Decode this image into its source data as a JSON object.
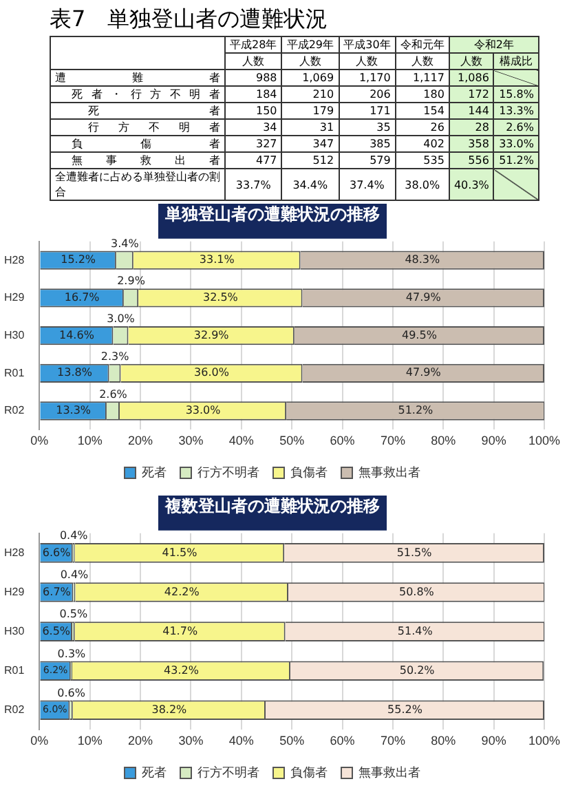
{
  "chart_data": [
    {
      "type": "other",
      "title": "表7　単独登山者の遭難状況",
      "categories": [
        "平成28年",
        "平成29年",
        "平成30年",
        "令和元年",
        "令和2年",
        null
      ],
      "y_categories": [
        null,
        "遭難者",
        "死者・行方不明者",
        "死者",
        "行方不明者",
        "負傷者",
        "無事救出者",
        "全遭難者に占める単独登山者の割合"
      ],
      "cell_labels": [
        [
          "人数",
          "人数",
          "人数",
          "人数",
          "人数",
          "構成比"
        ],
        [
          "988",
          "1,069",
          "1,170",
          "1,117",
          "1,086",
          null
        ],
        [
          "184",
          "210",
          "206",
          "180",
          "172",
          "15.8%"
        ],
        [
          "150",
          "179",
          "171",
          "154",
          "144",
          "13.3%"
        ],
        [
          "34",
          "31",
          "35",
          "26",
          "28",
          "2.6%"
        ],
        [
          "327",
          "347",
          "385",
          "402",
          "358",
          "33.0%"
        ],
        [
          "477",
          "512",
          "579",
          "535",
          "556",
          "51.2%"
        ],
        [
          "33.7%",
          "34.4%",
          "37.4%",
          "38.0%",
          "40.3%",
          null
        ]
      ]
    },
    {
      "type": "bar",
      "orientation": "horizontal",
      "stacked": true,
      "title": "単独登山者の遭難状況の推移",
      "categories": [
        "H28",
        "H29",
        "H30",
        "R01",
        "R02"
      ],
      "xlim": [
        0,
        100
      ],
      "xticks": [
        {
          "value": 0,
          "label": "0%"
        },
        {
          "value": 10,
          "label": "10%"
        },
        {
          "value": 20,
          "label": "20%"
        },
        {
          "value": 30,
          "label": "30%"
        },
        {
          "value": 40,
          "label": "40%"
        },
        {
          "value": 50,
          "label": "50%"
        },
        {
          "value": 60,
          "label": "60%"
        },
        {
          "value": 70,
          "label": "70%"
        },
        {
          "value": 80,
          "label": "80%"
        },
        {
          "value": 90,
          "label": "90%"
        },
        {
          "value": 100,
          "label": "100%"
        }
      ],
      "grid": "x",
      "legend": "bottom",
      "series": [
        {
          "name": "死者",
          "color": "#3a9bdc",
          "values": [
            15.2,
            16.7,
            14.6,
            13.8,
            13.3
          ],
          "value_labels": [
            "15.2%",
            "16.7%",
            "14.6%",
            "13.8%",
            "13.3%"
          ]
        },
        {
          "name": "行方不明者",
          "color": "#d6ebc2",
          "values": [
            3.4,
            2.9,
            3.0,
            2.3,
            2.6
          ],
          "value_labels": [
            "3.4%",
            "2.9%",
            "3.0%",
            "2.3%",
            "2.6%"
          ]
        },
        {
          "name": "負傷者",
          "color": "#f7f58c",
          "values": [
            33.1,
            32.5,
            32.9,
            36.0,
            33.0
          ],
          "value_labels": [
            "33.1%",
            "32.5%",
            "32.9%",
            "36.0%",
            "33.0%"
          ]
        },
        {
          "name": "無事救出者",
          "color": "#cbbdb0",
          "values": [
            48.3,
            47.9,
            49.5,
            47.9,
            51.2
          ],
          "value_labels": [
            "48.3%",
            "47.9%",
            "49.5%",
            "47.9%",
            "51.2%"
          ]
        }
      ]
    },
    {
      "type": "bar",
      "orientation": "horizontal",
      "stacked": true,
      "title": "複数登山者の遭難状況の推移",
      "categories": [
        "H28",
        "H29",
        "H30",
        "R01",
        "R02"
      ],
      "xlim": [
        0,
        100
      ],
      "xticks": [
        {
          "value": 0,
          "label": "0%"
        },
        {
          "value": 10,
          "label": "10%"
        },
        {
          "value": 20,
          "label": "20%"
        },
        {
          "value": 30,
          "label": "30%"
        },
        {
          "value": 40,
          "label": "40%"
        },
        {
          "value": 50,
          "label": "50%"
        },
        {
          "value": 60,
          "label": "60%"
        },
        {
          "value": 70,
          "label": "70%"
        },
        {
          "value": 80,
          "label": "80%"
        },
        {
          "value": 90,
          "label": "90%"
        },
        {
          "value": 100,
          "label": "100%"
        }
      ],
      "grid": "x",
      "legend": "bottom",
      "series": [
        {
          "name": "死者",
          "color": "#3a9bdc",
          "values": [
            6.6,
            6.7,
            6.5,
            6.2,
            6.0
          ],
          "value_labels": [
            "6.6%",
            "6.7%",
            "6.5%",
            "6.2%",
            "6.0%"
          ]
        },
        {
          "name": "行方不明者",
          "color": "#d6ebc2",
          "values": [
            0.4,
            0.4,
            0.5,
            0.3,
            0.6
          ],
          "value_labels": [
            "0.4%",
            "0.4%",
            "0.5%",
            "0.3%",
            "0.6%"
          ]
        },
        {
          "name": "負傷者",
          "color": "#f7f58c",
          "values": [
            41.5,
            42.2,
            41.7,
            43.2,
            38.2
          ],
          "value_labels": [
            "41.5%",
            "42.2%",
            "41.7%",
            "43.2%",
            "38.2%"
          ]
        },
        {
          "name": "無事救出者",
          "color": "#f6e4d8",
          "values": [
            51.5,
            50.8,
            51.4,
            50.2,
            55.2
          ],
          "value_labels": [
            "51.5%",
            "50.8%",
            "51.4%",
            "50.2%",
            "55.2%"
          ]
        }
      ]
    }
  ]
}
